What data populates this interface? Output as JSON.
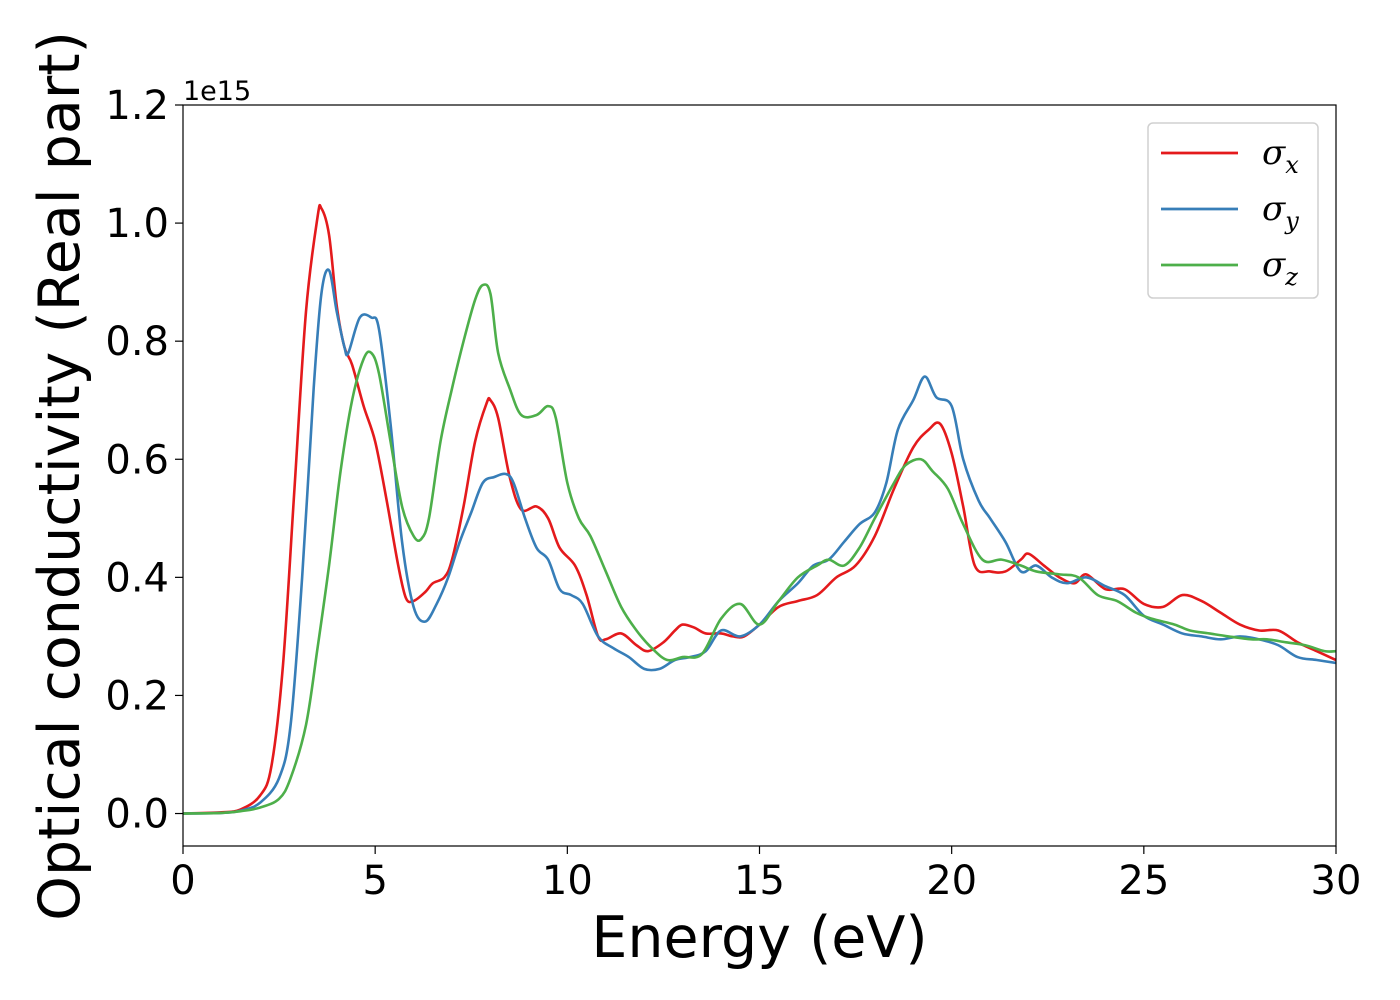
{
  "chart_data": {
    "type": "line",
    "title": "",
    "xlabel": "Energy (eV)",
    "ylabel": "Optical conductivity (Real part)",
    "y_offset_label": "1e15",
    "xlim": [
      0,
      30
    ],
    "ylim": [
      -0.055,
      1.2
    ],
    "x_ticks": [
      0,
      5,
      10,
      15,
      20,
      25,
      30
    ],
    "x_tick_labels": [
      "0",
      "5",
      "10",
      "15",
      "20",
      "25",
      "30"
    ],
    "y_ticks": [
      0.0,
      0.2,
      0.4,
      0.6,
      0.8,
      1.0,
      1.2
    ],
    "y_tick_labels": [
      "0.0",
      "0.2",
      "0.4",
      "0.6",
      "0.8",
      "1.0",
      "1.2"
    ],
    "grid": false,
    "legend_position": "top-right",
    "series": [
      {
        "name": "σx",
        "legend": {
          "base": "σ",
          "sub": "x"
        },
        "color": "#e41a1c",
        "points": [
          [
            0,
            0
          ],
          [
            1,
            0.002
          ],
          [
            1.5,
            0.007
          ],
          [
            2.0,
            0.03
          ],
          [
            2.3,
            0.08
          ],
          [
            2.6,
            0.25
          ],
          [
            2.9,
            0.55
          ],
          [
            3.2,
            0.85
          ],
          [
            3.5,
            1.01
          ],
          [
            3.6,
            1.025
          ],
          [
            3.8,
            0.98
          ],
          [
            4.0,
            0.86
          ],
          [
            4.2,
            0.79
          ],
          [
            4.4,
            0.76
          ],
          [
            4.7,
            0.69
          ],
          [
            5.0,
            0.63
          ],
          [
            5.3,
            0.53
          ],
          [
            5.6,
            0.42
          ],
          [
            5.8,
            0.365
          ],
          [
            6.0,
            0.36
          ],
          [
            6.3,
            0.375
          ],
          [
            6.5,
            0.39
          ],
          [
            6.8,
            0.4
          ],
          [
            7.0,
            0.43
          ],
          [
            7.3,
            0.52
          ],
          [
            7.6,
            0.63
          ],
          [
            7.9,
            0.695
          ],
          [
            8.0,
            0.7
          ],
          [
            8.2,
            0.67
          ],
          [
            8.5,
            0.57
          ],
          [
            8.8,
            0.515
          ],
          [
            9.2,
            0.52
          ],
          [
            9.5,
            0.5
          ],
          [
            9.8,
            0.45
          ],
          [
            10.2,
            0.42
          ],
          [
            10.5,
            0.37
          ],
          [
            10.8,
            0.3
          ],
          [
            11.0,
            0.295
          ],
          [
            11.4,
            0.305
          ],
          [
            11.8,
            0.285
          ],
          [
            12.1,
            0.275
          ],
          [
            12.5,
            0.29
          ],
          [
            12.8,
            0.31
          ],
          [
            13.0,
            0.32
          ],
          [
            13.3,
            0.315
          ],
          [
            13.6,
            0.305
          ],
          [
            14.0,
            0.305
          ],
          [
            14.3,
            0.3
          ],
          [
            14.6,
            0.3
          ],
          [
            15.0,
            0.32
          ],
          [
            15.5,
            0.35
          ],
          [
            16.0,
            0.36
          ],
          [
            16.5,
            0.37
          ],
          [
            17.0,
            0.4
          ],
          [
            17.5,
            0.42
          ],
          [
            18.0,
            0.47
          ],
          [
            18.5,
            0.55
          ],
          [
            19.0,
            0.62
          ],
          [
            19.4,
            0.65
          ],
          [
            19.7,
            0.66
          ],
          [
            20.0,
            0.61
          ],
          [
            20.3,
            0.52
          ],
          [
            20.6,
            0.42
          ],
          [
            21.0,
            0.41
          ],
          [
            21.4,
            0.41
          ],
          [
            21.8,
            0.43
          ],
          [
            22.0,
            0.44
          ],
          [
            22.4,
            0.42
          ],
          [
            22.8,
            0.4
          ],
          [
            23.2,
            0.39
          ],
          [
            23.5,
            0.405
          ],
          [
            24.0,
            0.38
          ],
          [
            24.5,
            0.38
          ],
          [
            25.0,
            0.355
          ],
          [
            25.5,
            0.35
          ],
          [
            26.0,
            0.37
          ],
          [
            26.5,
            0.36
          ],
          [
            27.0,
            0.34
          ],
          [
            27.5,
            0.32
          ],
          [
            28.0,
            0.31
          ],
          [
            28.5,
            0.31
          ],
          [
            29.0,
            0.29
          ],
          [
            29.5,
            0.275
          ],
          [
            30.0,
            0.26
          ]
        ]
      },
      {
        "name": "σy",
        "legend": {
          "base": "σ",
          "sub": "y"
        },
        "color": "#377eb8",
        "points": [
          [
            0,
            0
          ],
          [
            1,
            0.001
          ],
          [
            1.5,
            0.005
          ],
          [
            2.0,
            0.018
          ],
          [
            2.5,
            0.06
          ],
          [
            2.8,
            0.15
          ],
          [
            3.1,
            0.4
          ],
          [
            3.4,
            0.72
          ],
          [
            3.6,
            0.88
          ],
          [
            3.8,
            0.92
          ],
          [
            4.0,
            0.85
          ],
          [
            4.2,
            0.79
          ],
          [
            4.3,
            0.78
          ],
          [
            4.6,
            0.84
          ],
          [
            4.9,
            0.84
          ],
          [
            5.1,
            0.82
          ],
          [
            5.4,
            0.66
          ],
          [
            5.7,
            0.46
          ],
          [
            6.0,
            0.35
          ],
          [
            6.3,
            0.325
          ],
          [
            6.6,
            0.355
          ],
          [
            6.9,
            0.4
          ],
          [
            7.2,
            0.46
          ],
          [
            7.5,
            0.51
          ],
          [
            7.8,
            0.56
          ],
          [
            8.1,
            0.57
          ],
          [
            8.4,
            0.575
          ],
          [
            8.6,
            0.56
          ],
          [
            8.9,
            0.5
          ],
          [
            9.2,
            0.45
          ],
          [
            9.5,
            0.43
          ],
          [
            9.8,
            0.38
          ],
          [
            10.1,
            0.37
          ],
          [
            10.4,
            0.355
          ],
          [
            10.8,
            0.3
          ],
          [
            11.2,
            0.28
          ],
          [
            11.6,
            0.265
          ],
          [
            12.0,
            0.245
          ],
          [
            12.4,
            0.245
          ],
          [
            12.8,
            0.26
          ],
          [
            13.2,
            0.265
          ],
          [
            13.6,
            0.275
          ],
          [
            14.0,
            0.31
          ],
          [
            14.5,
            0.3
          ],
          [
            15.0,
            0.32
          ],
          [
            15.5,
            0.36
          ],
          [
            16.0,
            0.39
          ],
          [
            16.4,
            0.42
          ],
          [
            16.8,
            0.43
          ],
          [
            17.2,
            0.46
          ],
          [
            17.6,
            0.49
          ],
          [
            18.0,
            0.51
          ],
          [
            18.3,
            0.56
          ],
          [
            18.6,
            0.65
          ],
          [
            19.0,
            0.7
          ],
          [
            19.3,
            0.74
          ],
          [
            19.6,
            0.705
          ],
          [
            20.0,
            0.69
          ],
          [
            20.3,
            0.6
          ],
          [
            20.7,
            0.53
          ],
          [
            21.0,
            0.5
          ],
          [
            21.4,
            0.46
          ],
          [
            21.8,
            0.41
          ],
          [
            22.2,
            0.42
          ],
          [
            22.6,
            0.4
          ],
          [
            23.0,
            0.39
          ],
          [
            23.5,
            0.4
          ],
          [
            24.0,
            0.385
          ],
          [
            24.5,
            0.37
          ],
          [
            25.0,
            0.335
          ],
          [
            25.5,
            0.32
          ],
          [
            26.0,
            0.305
          ],
          [
            26.5,
            0.3
          ],
          [
            27.0,
            0.295
          ],
          [
            27.5,
            0.3
          ],
          [
            28.0,
            0.295
          ],
          [
            28.5,
            0.285
          ],
          [
            29.0,
            0.265
          ],
          [
            29.5,
            0.26
          ],
          [
            30.0,
            0.255
          ]
        ]
      },
      {
        "name": "σz",
        "legend": {
          "base": "σ",
          "sub": "z"
        },
        "color": "#4daf4a",
        "points": [
          [
            0,
            0
          ],
          [
            1,
            0.001
          ],
          [
            1.5,
            0.004
          ],
          [
            2.0,
            0.01
          ],
          [
            2.5,
            0.025
          ],
          [
            2.8,
            0.06
          ],
          [
            3.2,
            0.15
          ],
          [
            3.5,
            0.28
          ],
          [
            3.8,
            0.42
          ],
          [
            4.1,
            0.58
          ],
          [
            4.4,
            0.7
          ],
          [
            4.7,
            0.77
          ],
          [
            4.9,
            0.78
          ],
          [
            5.1,
            0.745
          ],
          [
            5.4,
            0.63
          ],
          [
            5.7,
            0.52
          ],
          [
            6.0,
            0.47
          ],
          [
            6.2,
            0.465
          ],
          [
            6.4,
            0.5
          ],
          [
            6.7,
            0.63
          ],
          [
            7.0,
            0.72
          ],
          [
            7.3,
            0.8
          ],
          [
            7.6,
            0.87
          ],
          [
            7.8,
            0.895
          ],
          [
            8.0,
            0.88
          ],
          [
            8.2,
            0.78
          ],
          [
            8.5,
            0.72
          ],
          [
            8.8,
            0.675
          ],
          [
            9.2,
            0.675
          ],
          [
            9.5,
            0.69
          ],
          [
            9.7,
            0.67
          ],
          [
            10.0,
            0.56
          ],
          [
            10.3,
            0.5
          ],
          [
            10.6,
            0.47
          ],
          [
            11.0,
            0.41
          ],
          [
            11.4,
            0.35
          ],
          [
            11.8,
            0.31
          ],
          [
            12.2,
            0.28
          ],
          [
            12.6,
            0.26
          ],
          [
            13.0,
            0.265
          ],
          [
            13.5,
            0.27
          ],
          [
            14.0,
            0.33
          ],
          [
            14.5,
            0.355
          ],
          [
            15.0,
            0.32
          ],
          [
            15.5,
            0.36
          ],
          [
            16.0,
            0.4
          ],
          [
            16.5,
            0.42
          ],
          [
            16.8,
            0.43
          ],
          [
            17.2,
            0.42
          ],
          [
            17.6,
            0.45
          ],
          [
            18.0,
            0.5
          ],
          [
            18.5,
            0.56
          ],
          [
            18.8,
            0.59
          ],
          [
            19.2,
            0.6
          ],
          [
            19.5,
            0.58
          ],
          [
            19.9,
            0.55
          ],
          [
            20.3,
            0.49
          ],
          [
            20.8,
            0.43
          ],
          [
            21.3,
            0.43
          ],
          [
            21.8,
            0.42
          ],
          [
            22.2,
            0.41
          ],
          [
            22.8,
            0.405
          ],
          [
            23.3,
            0.4
          ],
          [
            23.8,
            0.37
          ],
          [
            24.3,
            0.36
          ],
          [
            24.8,
            0.34
          ],
          [
            25.2,
            0.33
          ],
          [
            25.8,
            0.32
          ],
          [
            26.2,
            0.31
          ],
          [
            26.7,
            0.305
          ],
          [
            27.2,
            0.3
          ],
          [
            27.8,
            0.295
          ],
          [
            28.2,
            0.295
          ],
          [
            28.7,
            0.29
          ],
          [
            29.2,
            0.285
          ],
          [
            29.7,
            0.275
          ],
          [
            30.0,
            0.275
          ]
        ]
      }
    ]
  }
}
